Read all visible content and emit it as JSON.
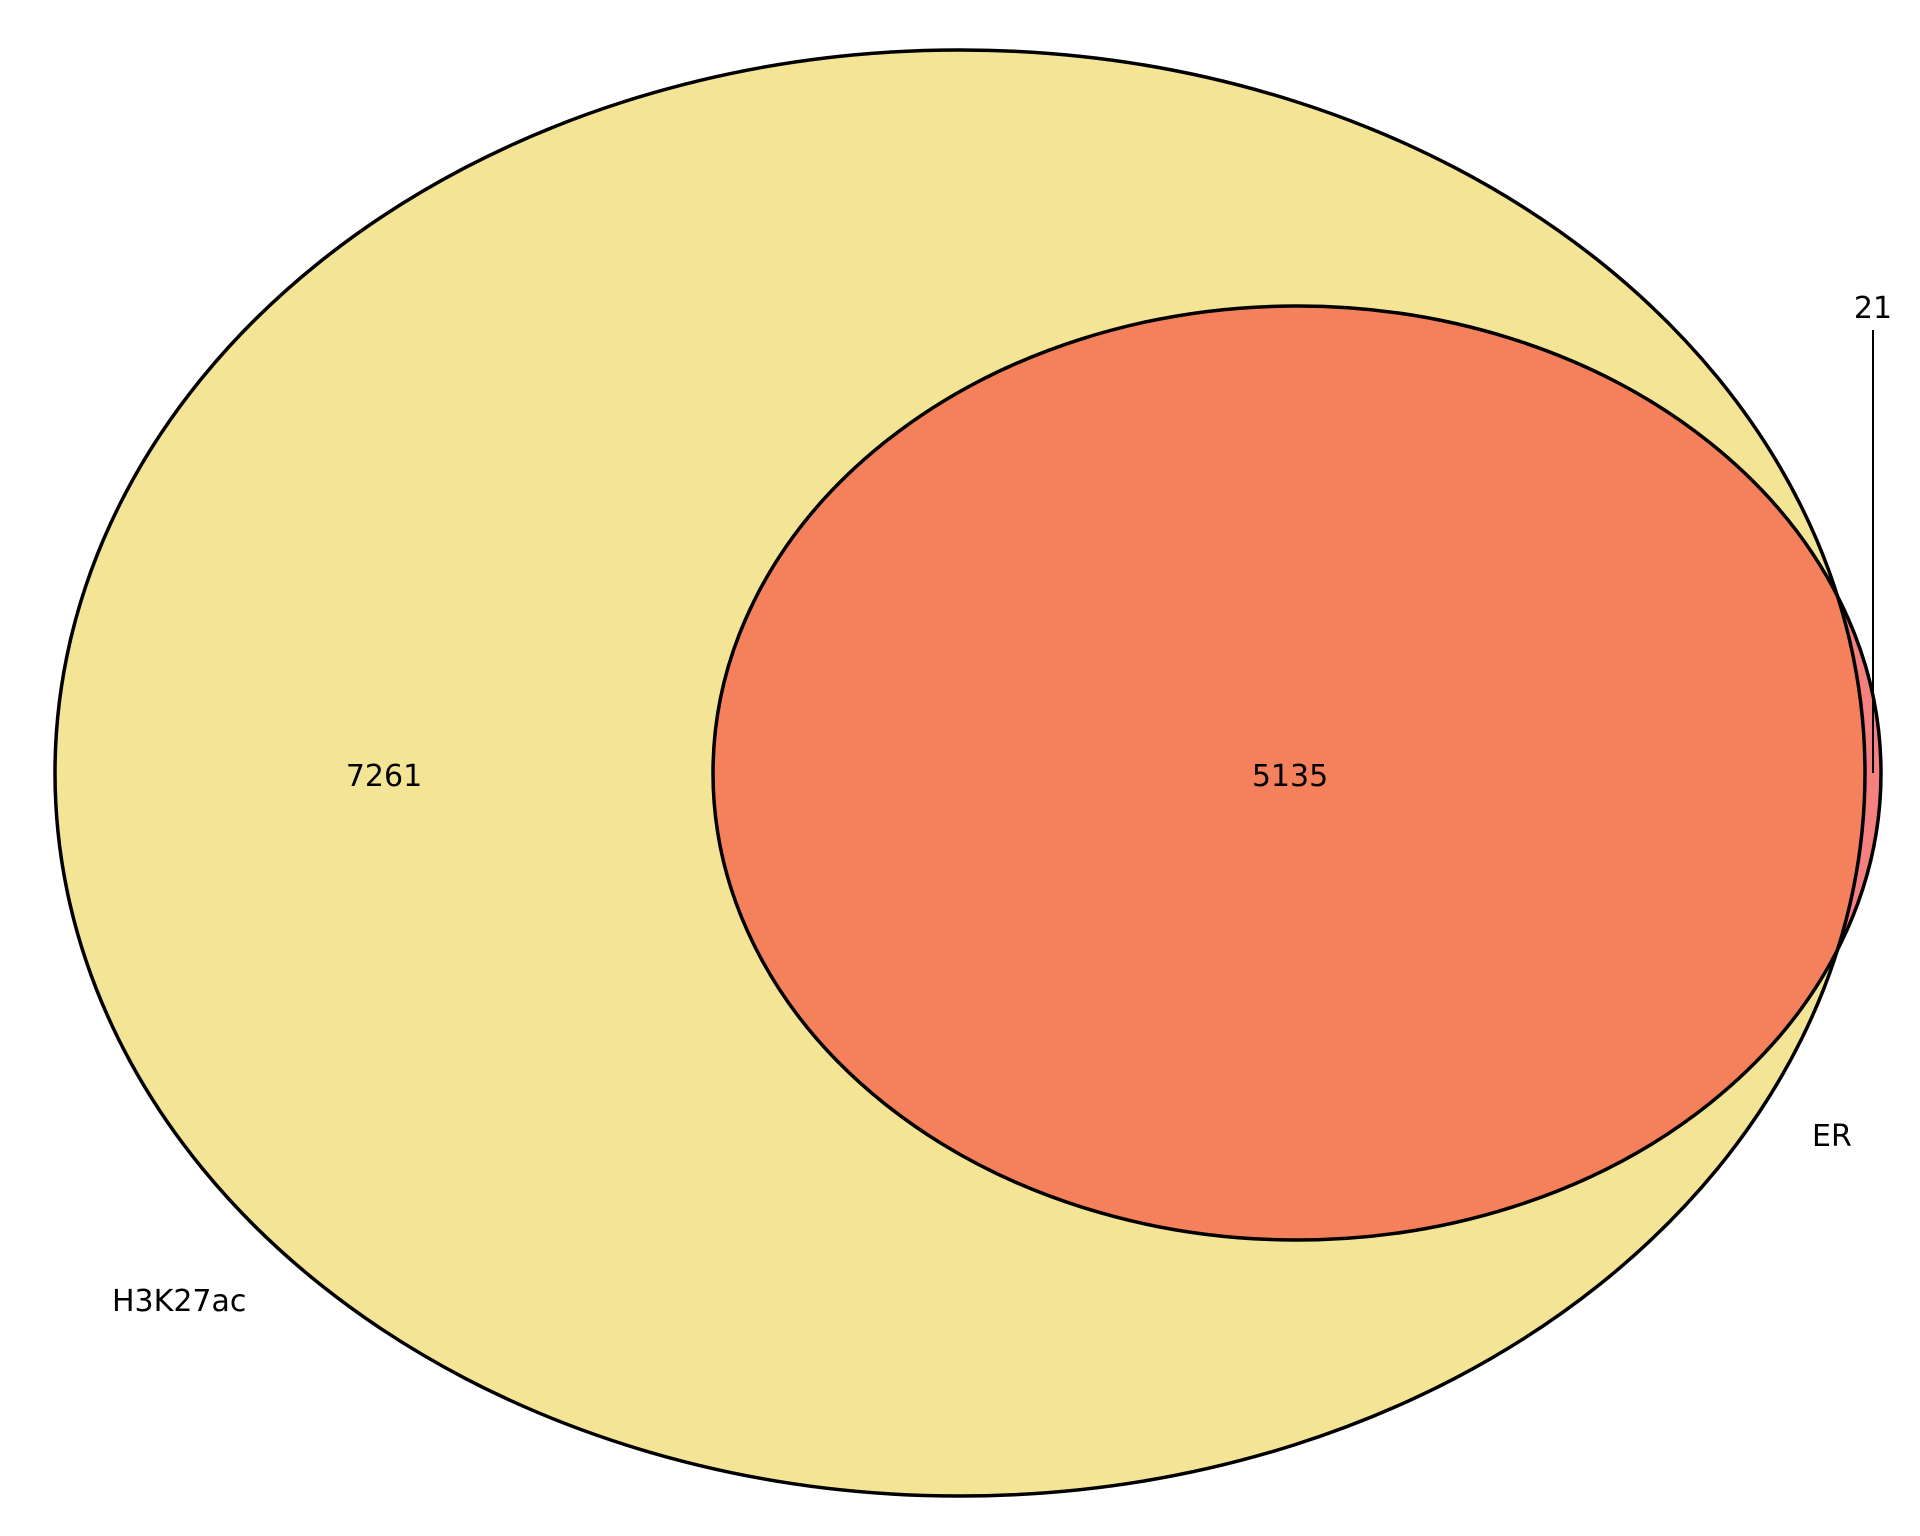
{
  "sets": [
    {
      "name": "H3K27ac",
      "color": "#f4e596"
    },
    {
      "name": "ER",
      "color": "#f48080"
    }
  ],
  "regions": {
    "h3k27ac_only": 7261,
    "intersection": 5135,
    "er_only": 21
  },
  "colors": {
    "intersection": "#f4805c",
    "outline": "#000000",
    "background": "#ffffff"
  }
}
